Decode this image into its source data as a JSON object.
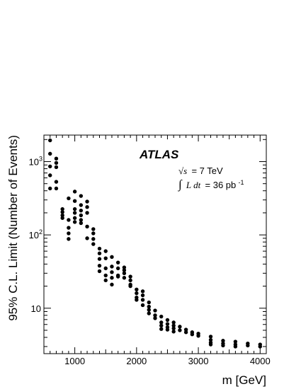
{
  "chart_data": {
    "type": "scatter",
    "title": "",
    "xlabel": "m [GeV]",
    "ylabel": "95% C.L. Limit (Number of Events)",
    "xlim": [
      500,
      4100
    ],
    "ylim": [
      2.4,
      2300
    ],
    "yscale": "log",
    "xticks": [
      1000,
      2000,
      3000,
      4000
    ],
    "xtick_labels": [
      "1000",
      "2000",
      "3000",
      "4000"
    ],
    "yticks": [
      10,
      100,
      1000
    ],
    "ytick_labels": [
      "10",
      "10",
      "10"
    ],
    "ytick_exponents": [
      "",
      "2",
      "3"
    ],
    "grid": false,
    "annotations": {
      "experiment": "ATLAS",
      "sqrt_s_symbol": "√s",
      "energy": "= 7 TeV",
      "lumi_integral": "∫",
      "lumi_expr": "L dt",
      "lumi_value": "= 36 pb",
      "lumi_exponent": "-1"
    },
    "points": [
      {
        "x": 600,
        "y": 1950
      },
      {
        "x": 600,
        "y": 1280
      },
      {
        "x": 600,
        "y": 860
      },
      {
        "x": 600,
        "y": 650
      },
      {
        "x": 600,
        "y": 430
      },
      {
        "x": 700,
        "y": 1100
      },
      {
        "x": 700,
        "y": 960
      },
      {
        "x": 700,
        "y": 840
      },
      {
        "x": 700,
        "y": 530
      },
      {
        "x": 700,
        "y": 430
      },
      {
        "x": 800,
        "y": 225
      },
      {
        "x": 800,
        "y": 205
      },
      {
        "x": 800,
        "y": 185
      },
      {
        "x": 800,
        "y": 170
      },
      {
        "x": 900,
        "y": 315
      },
      {
        "x": 900,
        "y": 160
      },
      {
        "x": 900,
        "y": 125
      },
      {
        "x": 900,
        "y": 105
      },
      {
        "x": 900,
        "y": 88
      },
      {
        "x": 1000,
        "y": 390
      },
      {
        "x": 1000,
        "y": 290
      },
      {
        "x": 1000,
        "y": 225
      },
      {
        "x": 1000,
        "y": 200
      },
      {
        "x": 1000,
        "y": 170
      },
      {
        "x": 1000,
        "y": 150
      },
      {
        "x": 1100,
        "y": 340
      },
      {
        "x": 1100,
        "y": 255
      },
      {
        "x": 1100,
        "y": 215
      },
      {
        "x": 1100,
        "y": 185
      },
      {
        "x": 1100,
        "y": 160
      },
      {
        "x": 1100,
        "y": 145
      },
      {
        "x": 1200,
        "y": 285
      },
      {
        "x": 1200,
        "y": 240
      },
      {
        "x": 1200,
        "y": 200
      },
      {
        "x": 1200,
        "y": 130
      },
      {
        "x": 1200,
        "y": 90
      },
      {
        "x": 1300,
        "y": 120
      },
      {
        "x": 1300,
        "y": 105
      },
      {
        "x": 1300,
        "y": 88
      },
      {
        "x": 1300,
        "y": 75
      },
      {
        "x": 1400,
        "y": 65
      },
      {
        "x": 1400,
        "y": 56
      },
      {
        "x": 1400,
        "y": 47
      },
      {
        "x": 1400,
        "y": 38
      },
      {
        "x": 1400,
        "y": 32
      },
      {
        "x": 1500,
        "y": 60
      },
      {
        "x": 1500,
        "y": 48
      },
      {
        "x": 1500,
        "y": 35
      },
      {
        "x": 1500,
        "y": 28
      },
      {
        "x": 1500,
        "y": 24
      },
      {
        "x": 1600,
        "y": 50
      },
      {
        "x": 1600,
        "y": 37
      },
      {
        "x": 1600,
        "y": 31
      },
      {
        "x": 1600,
        "y": 26
      },
      {
        "x": 1600,
        "y": 21
      },
      {
        "x": 1700,
        "y": 42
      },
      {
        "x": 1700,
        "y": 35
      },
      {
        "x": 1700,
        "y": 28
      },
      {
        "x": 1700,
        "y": 27
      },
      {
        "x": 1800,
        "y": 36
      },
      {
        "x": 1800,
        "y": 33
      },
      {
        "x": 1800,
        "y": 30
      },
      {
        "x": 1800,
        "y": 26
      },
      {
        "x": 1900,
        "y": 27
      },
      {
        "x": 1900,
        "y": 24
      },
      {
        "x": 1900,
        "y": 21
      },
      {
        "x": 1900,
        "y": 20
      },
      {
        "x": 2000,
        "y": 18
      },
      {
        "x": 2000,
        "y": 16
      },
      {
        "x": 2000,
        "y": 14
      },
      {
        "x": 2000,
        "y": 13
      },
      {
        "x": 2100,
        "y": 17
      },
      {
        "x": 2100,
        "y": 15
      },
      {
        "x": 2100,
        "y": 13
      },
      {
        "x": 2100,
        "y": 11
      },
      {
        "x": 2200,
        "y": 12
      },
      {
        "x": 2200,
        "y": 10.5
      },
      {
        "x": 2200,
        "y": 9.5
      },
      {
        "x": 2200,
        "y": 8.5
      },
      {
        "x": 2300,
        "y": 9.3
      },
      {
        "x": 2300,
        "y": 8
      },
      {
        "x": 2300,
        "y": 7.3
      },
      {
        "x": 2400,
        "y": 7.7
      },
      {
        "x": 2400,
        "y": 6.4
      },
      {
        "x": 2400,
        "y": 5.8
      },
      {
        "x": 2400,
        "y": 5.2
      },
      {
        "x": 2500,
        "y": 6.9
      },
      {
        "x": 2500,
        "y": 6.1
      },
      {
        "x": 2500,
        "y": 5.5
      },
      {
        "x": 2500,
        "y": 5.1
      },
      {
        "x": 2600,
        "y": 6.4
      },
      {
        "x": 2600,
        "y": 5.8
      },
      {
        "x": 2600,
        "y": 5.3
      },
      {
        "x": 2600,
        "y": 4.8
      },
      {
        "x": 2700,
        "y": 5.6
      },
      {
        "x": 2700,
        "y": 5.0
      },
      {
        "x": 2800,
        "y": 5.1
      },
      {
        "x": 2800,
        "y": 4.7
      },
      {
        "x": 2900,
        "y": 4.7
      },
      {
        "x": 2900,
        "y": 4.4
      },
      {
        "x": 3000,
        "y": 4.5
      },
      {
        "x": 3000,
        "y": 4.2
      },
      {
        "x": 3200,
        "y": 4.1
      },
      {
        "x": 3200,
        "y": 3.7
      },
      {
        "x": 3200,
        "y": 3.4
      },
      {
        "x": 3200,
        "y": 3.2
      },
      {
        "x": 3400,
        "y": 3.6
      },
      {
        "x": 3400,
        "y": 3.3
      },
      {
        "x": 3400,
        "y": 3.1
      },
      {
        "x": 3600,
        "y": 3.5
      },
      {
        "x": 3600,
        "y": 3.2
      },
      {
        "x": 3600,
        "y": 3.0
      },
      {
        "x": 3800,
        "y": 3.3
      },
      {
        "x": 3800,
        "y": 3.1
      },
      {
        "x": 4000,
        "y": 3.2
      },
      {
        "x": 4000,
        "y": 3.0
      }
    ]
  }
}
